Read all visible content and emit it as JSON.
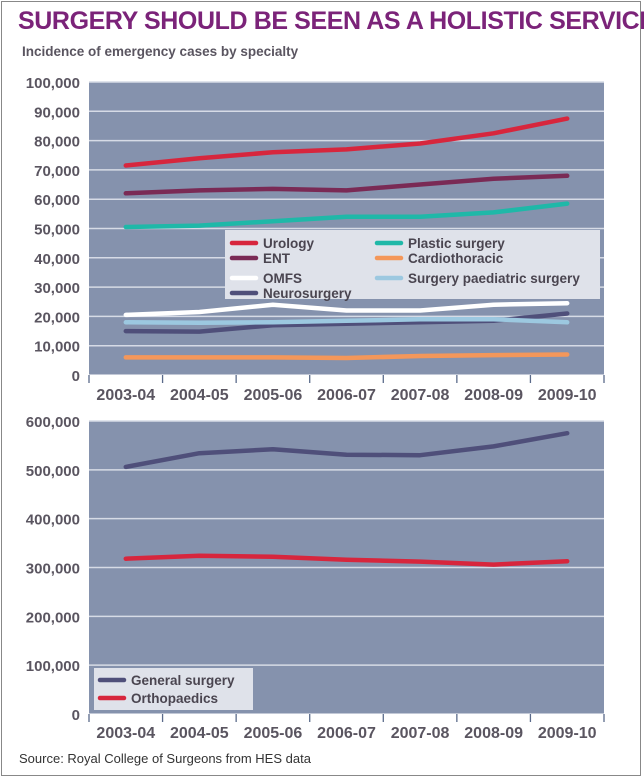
{
  "title": "SURGERY SHOULD BE SEEN AS A HOLISTIC SERVICE",
  "subtitle": "Incidence of emergency cases by specialty",
  "source": "Source: Royal College of Surgeons from HES data",
  "colors": {
    "plot_bg": "#8592ad",
    "grid": "#d6dbe6",
    "legend_bg": "#dfe2ea",
    "title": "#7b2379"
  },
  "chart_data": [
    {
      "type": "line",
      "categories": [
        "2003-04",
        "2004-05",
        "2005-06",
        "2006-07",
        "2007-08",
        "2008-09",
        "2009-10"
      ],
      "ylim": [
        0,
        100000
      ],
      "yticks": [
        0,
        10000,
        20000,
        30000,
        40000,
        50000,
        60000,
        70000,
        80000,
        90000,
        100000
      ],
      "ytick_labels": [
        "0",
        "10,000",
        "20,000",
        "30,000",
        "40,000",
        "50,000",
        "60,000",
        "70,000",
        "80,000",
        "90,000",
        "100,000"
      ],
      "grid": true,
      "legend_placement": "center-right",
      "series": [
        {
          "name": "Urology",
          "color": "#d7263d",
          "values": [
            71500,
            74000,
            76000,
            77000,
            79000,
            82500,
            87500
          ]
        },
        {
          "name": "ENT",
          "color": "#7a2a55",
          "values": [
            62000,
            63000,
            63500,
            63000,
            65000,
            67000,
            68000
          ]
        },
        {
          "name": "OMFS",
          "color": "#ffffff",
          "values": [
            20500,
            21500,
            24000,
            22000,
            22000,
            24000,
            24500
          ]
        },
        {
          "name": "Neurosurgery",
          "color": "#4f4f7a",
          "values": [
            15000,
            14800,
            17000,
            17500,
            18000,
            18500,
            21000
          ]
        },
        {
          "name": "Plastic surgery",
          "color": "#1fb8a8",
          "values": [
            50500,
            51000,
            52500,
            54000,
            54000,
            55500,
            58500
          ]
        },
        {
          "name": "Cardiothoracic",
          "color": "#f4975a",
          "values": [
            6000,
            6000,
            6000,
            5800,
            6500,
            6800,
            7000
          ]
        },
        {
          "name": "Surgery paediatric surgery",
          "color": "#9cc8e0",
          "values": [
            18000,
            17800,
            18000,
            18500,
            19000,
            19000,
            18000
          ]
        }
      ]
    },
    {
      "type": "line",
      "categories": [
        "2003-04",
        "2004-05",
        "2005-06",
        "2006-07",
        "2007-08",
        "2008-09",
        "2009-10"
      ],
      "ylim": [
        0,
        600000
      ],
      "yticks": [
        0,
        100000,
        200000,
        300000,
        400000,
        500000,
        600000
      ],
      "ytick_labels": [
        "0",
        "100,000",
        "200,000",
        "300,000",
        "400,000",
        "500,000",
        "600,000"
      ],
      "grid": true,
      "legend_placement": "bottom-left",
      "series": [
        {
          "name": "General surgery",
          "color": "#4f4f7a",
          "values": [
            506000,
            534000,
            542000,
            531000,
            530000,
            548000,
            575000
          ]
        },
        {
          "name": "Orthopaedics",
          "color": "#d7263d",
          "values": [
            318000,
            324000,
            322000,
            316000,
            312000,
            306000,
            313000
          ]
        }
      ]
    }
  ]
}
